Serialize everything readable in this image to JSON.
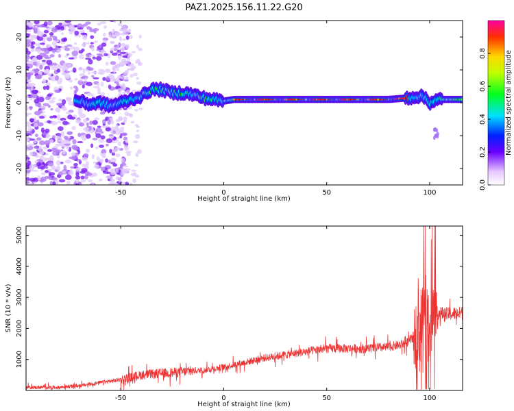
{
  "title": "PAZ1.2025.156.11.22.G20",
  "chart_data": [
    {
      "type": "heatmap",
      "xlabel": "Height of straight line (km)",
      "ylabel": "Frequency (Hz)",
      "xlim": [
        -96,
        116
      ],
      "ylim": [
        -25,
        25
      ],
      "xticks": [
        -50,
        0,
        50,
        100
      ],
      "yticks": [
        -20,
        -10,
        0,
        10,
        20
      ],
      "ridge": {
        "x": [
          -70,
          -65,
          -60,
          -55,
          -50,
          -45,
          -40,
          -35,
          -30,
          -25,
          -20,
          -15,
          -10,
          -5,
          0,
          5,
          10,
          20,
          30,
          40,
          50,
          60,
          70,
          80,
          90,
          95,
          98,
          100,
          102,
          105,
          110,
          116
        ],
        "y": [
          0.5,
          -0.5,
          0,
          -1,
          0,
          1,
          2,
          4,
          4,
          3,
          3,
          2.5,
          1.5,
          1,
          0.5,
          1,
          1,
          1,
          1,
          1,
          1,
          1,
          1,
          1,
          1.5,
          2,
          1.5,
          0,
          0.5,
          1,
          1,
          1
        ]
      },
      "colorbar": {
        "label": "Normalized spectral amplitude",
        "range": [
          0,
          1
        ],
        "ticks": [
          "0.0",
          "0.2",
          "0.4",
          "0.6",
          "0.8"
        ]
      }
    },
    {
      "type": "line",
      "xlabel": "Height of straight line (km)",
      "ylabel": "SNR (10 * v/v)",
      "xlim": [
        -96,
        116
      ],
      "ylim": [
        0,
        5300
      ],
      "xticks": [
        -50,
        0,
        50,
        100
      ],
      "yticks": [
        1000,
        2000,
        3000,
        4000,
        5000
      ],
      "color": "#ee3333",
      "trend": {
        "x": [
          -96,
          -80,
          -70,
          -60,
          -50,
          -40,
          -30,
          -20,
          -10,
          0,
          10,
          20,
          30,
          40,
          50,
          60,
          70,
          80,
          88,
          92,
          96,
          98,
          100,
          102,
          104,
          108,
          116
        ],
        "y": [
          100,
          100,
          150,
          250,
          350,
          500,
          550,
          600,
          650,
          750,
          900,
          1050,
          1150,
          1250,
          1350,
          1350,
          1350,
          1400,
          1500,
          1700,
          2000,
          2300,
          2200,
          2500,
          2500,
          2450,
          2500
        ]
      }
    }
  ]
}
